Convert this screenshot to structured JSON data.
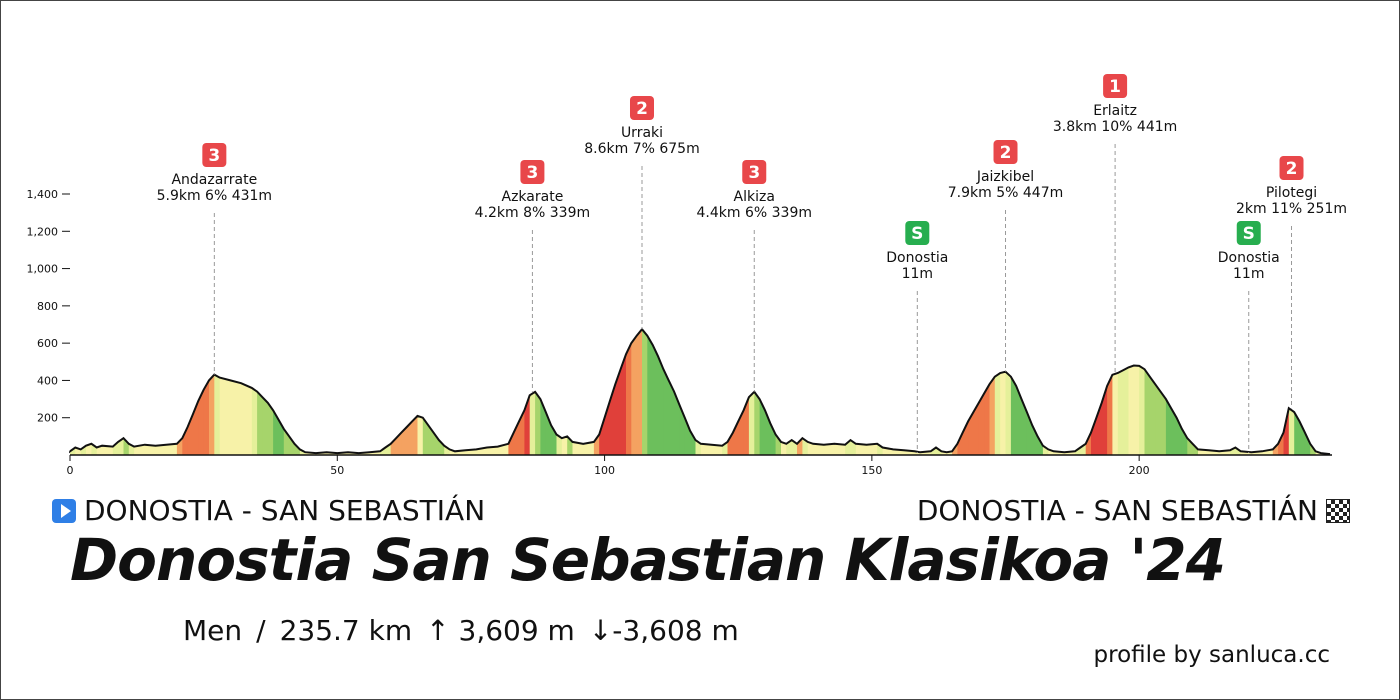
{
  "chart_data": {
    "type": "area",
    "title": "Donostia San Sebastian Klasikoa '24",
    "xlabel": "",
    "ylabel": "",
    "xlim": [
      0,
      235.7
    ],
    "ylim": [
      0,
      1400
    ],
    "x_ticks": [
      0,
      50,
      100,
      150,
      200
    ],
    "y_ticks": [
      200,
      400,
      600,
      800,
      1000,
      1200,
      1400
    ],
    "y_tick_labels": [
      "200",
      "400",
      "600",
      "800",
      "1,000",
      "1,200",
      "1,400"
    ],
    "x_tick_labels": [
      "0",
      "50",
      "100",
      "150",
      "200"
    ],
    "profile": [
      [
        0,
        20
      ],
      [
        1,
        40
      ],
      [
        2,
        30
      ],
      [
        3,
        50
      ],
      [
        4,
        60
      ],
      [
        5,
        40
      ],
      [
        6,
        50
      ],
      [
        8,
        45
      ],
      [
        9,
        70
      ],
      [
        10,
        90
      ],
      [
        11,
        60
      ],
      [
        12,
        45
      ],
      [
        14,
        55
      ],
      [
        16,
        50
      ],
      [
        18,
        55
      ],
      [
        20,
        60
      ],
      [
        21,
        90
      ],
      [
        22,
        150
      ],
      [
        23,
        220
      ],
      [
        24,
        290
      ],
      [
        25,
        350
      ],
      [
        26,
        400
      ],
      [
        27,
        431
      ],
      [
        28,
        415
      ],
      [
        30,
        400
      ],
      [
        32,
        385
      ],
      [
        34,
        360
      ],
      [
        35,
        340
      ],
      [
        36,
        310
      ],
      [
        37,
        280
      ],
      [
        38,
        240
      ],
      [
        39,
        190
      ],
      [
        40,
        140
      ],
      [
        41,
        100
      ],
      [
        42,
        60
      ],
      [
        43,
        30
      ],
      [
        44,
        15
      ],
      [
        46,
        10
      ],
      [
        48,
        15
      ],
      [
        50,
        10
      ],
      [
        52,
        15
      ],
      [
        54,
        10
      ],
      [
        56,
        15
      ],
      [
        58,
        20
      ],
      [
        59,
        40
      ],
      [
        60,
        60
      ],
      [
        61,
        90
      ],
      [
        62,
        120
      ],
      [
        63,
        150
      ],
      [
        64,
        180
      ],
      [
        65,
        210
      ],
      [
        66,
        200
      ],
      [
        67,
        160
      ],
      [
        68,
        120
      ],
      [
        69,
        80
      ],
      [
        70,
        50
      ],
      [
        71,
        30
      ],
      [
        72,
        20
      ],
      [
        74,
        25
      ],
      [
        76,
        30
      ],
      [
        78,
        40
      ],
      [
        80,
        45
      ],
      [
        82,
        60
      ],
      [
        83,
        120
      ],
      [
        84,
        180
      ],
      [
        85,
        240
      ],
      [
        86,
        320
      ],
      [
        87,
        339
      ],
      [
        88,
        300
      ],
      [
        89,
        230
      ],
      [
        90,
        160
      ],
      [
        91,
        110
      ],
      [
        92,
        90
      ],
      [
        93,
        100
      ],
      [
        94,
        70
      ],
      [
        96,
        60
      ],
      [
        98,
        70
      ],
      [
        99,
        110
      ],
      [
        100,
        200
      ],
      [
        101,
        290
      ],
      [
        102,
        380
      ],
      [
        103,
        460
      ],
      [
        104,
        540
      ],
      [
        105,
        600
      ],
      [
        106,
        640
      ],
      [
        107,
        675
      ],
      [
        108,
        640
      ],
      [
        109,
        590
      ],
      [
        110,
        530
      ],
      [
        111,
        460
      ],
      [
        112,
        400
      ],
      [
        113,
        340
      ],
      [
        114,
        270
      ],
      [
        115,
        200
      ],
      [
        116,
        130
      ],
      [
        117,
        80
      ],
      [
        118,
        60
      ],
      [
        120,
        55
      ],
      [
        122,
        50
      ],
      [
        123,
        70
      ],
      [
        124,
        120
      ],
      [
        125,
        180
      ],
      [
        126,
        240
      ],
      [
        127,
        310
      ],
      [
        128,
        339
      ],
      [
        129,
        300
      ],
      [
        130,
        240
      ],
      [
        131,
        170
      ],
      [
        132,
        110
      ],
      [
        133,
        70
      ],
      [
        134,
        60
      ],
      [
        135,
        80
      ],
      [
        136,
        60
      ],
      [
        137,
        90
      ],
      [
        138,
        70
      ],
      [
        139,
        60
      ],
      [
        141,
        55
      ],
      [
        143,
        60
      ],
      [
        145,
        55
      ],
      [
        146,
        80
      ],
      [
        147,
        60
      ],
      [
        149,
        55
      ],
      [
        151,
        60
      ],
      [
        152,
        40
      ],
      [
        154,
        30
      ],
      [
        156,
        25
      ],
      [
        158,
        20
      ],
      [
        159,
        15
      ],
      [
        161,
        20
      ],
      [
        162,
        40
      ],
      [
        163,
        20
      ],
      [
        164,
        15
      ],
      [
        165,
        20
      ],
      [
        166,
        60
      ],
      [
        167,
        120
      ],
      [
        168,
        180
      ],
      [
        169,
        230
      ],
      [
        170,
        280
      ],
      [
        171,
        330
      ],
      [
        172,
        380
      ],
      [
        173,
        420
      ],
      [
        174,
        440
      ],
      [
        175,
        447
      ],
      [
        176,
        420
      ],
      [
        177,
        370
      ],
      [
        178,
        300
      ],
      [
        179,
        230
      ],
      [
        180,
        160
      ],
      [
        181,
        100
      ],
      [
        182,
        50
      ],
      [
        183,
        30
      ],
      [
        184,
        20
      ],
      [
        186,
        15
      ],
      [
        188,
        20
      ],
      [
        189,
        40
      ],
      [
        190,
        60
      ],
      [
        191,
        120
      ],
      [
        192,
        200
      ],
      [
        193,
        280
      ],
      [
        194,
        370
      ],
      [
        195,
        430
      ],
      [
        196,
        440
      ],
      [
        197,
        455
      ],
      [
        198,
        470
      ],
      [
        199,
        480
      ],
      [
        200,
        478
      ],
      [
        201,
        460
      ],
      [
        202,
        420
      ],
      [
        203,
        380
      ],
      [
        204,
        340
      ],
      [
        205,
        300
      ],
      [
        206,
        250
      ],
      [
        207,
        200
      ],
      [
        208,
        140
      ],
      [
        209,
        90
      ],
      [
        210,
        60
      ],
      [
        211,
        30
      ],
      [
        213,
        25
      ],
      [
        215,
        20
      ],
      [
        217,
        25
      ],
      [
        218,
        40
      ],
      [
        219,
        20
      ],
      [
        221,
        15
      ],
      [
        223,
        20
      ],
      [
        224,
        25
      ],
      [
        225,
        30
      ],
      [
        226,
        60
      ],
      [
        227,
        120
      ],
      [
        228,
        251
      ],
      [
        229,
        230
      ],
      [
        230,
        180
      ],
      [
        231,
        120
      ],
      [
        232,
        60
      ],
      [
        233,
        20
      ],
      [
        234,
        10
      ],
      [
        235.7,
        5
      ]
    ],
    "climbs": [
      {
        "cat": "3",
        "name": "Andazarrate",
        "stats": "5.9km 6% 431m",
        "km": 27,
        "ele": 431
      },
      {
        "cat": "3",
        "name": "Azkarate",
        "stats": "4.2km 8% 339m",
        "km": 86.5,
        "ele": 339
      },
      {
        "cat": "2",
        "name": "Urraki",
        "stats": "8.6km 7% 675m",
        "km": 107,
        "ele": 675
      },
      {
        "cat": "3",
        "name": "Alkiza",
        "stats": "4.4km 6% 339m",
        "km": 128,
        "ele": 339
      },
      {
        "cat": "2",
        "name": "Jaizkibel",
        "stats": "7.9km 5% 447m",
        "km": 175,
        "ele": 447
      },
      {
        "cat": "1",
        "name": "Erlaitz",
        "stats": "3.8km 10% 441m",
        "km": 195.5,
        "ele": 441
      },
      {
        "cat": "2",
        "name": "Pilotegi",
        "stats": "2km 11% 251m",
        "km": 228.5,
        "ele": 251
      }
    ],
    "sprints": [
      {
        "cat": "S",
        "name": "Donostia",
        "stats": "11m",
        "km": 158.5,
        "ele": 11
      },
      {
        "cat": "S",
        "name": "Donostia",
        "stats": "11m",
        "km": 220.5,
        "ele": 11
      }
    ],
    "colors": {
      "climb_badge": "#e8474a",
      "sprint_badge": "#27ae4f",
      "flat": "#f7f2a8",
      "gentle": "#e5f09a",
      "moderate": "#a6d46b",
      "steep": "#6cbf5c",
      "orange": "#f4a261",
      "hard": "#ee7748",
      "red": "#e0403a"
    }
  },
  "start": {
    "label": "DONOSTIA - SAN SEBASTIÁN",
    "icon": "play-icon"
  },
  "finish": {
    "label": "DONOSTIA - SAN SEBASTIÁN",
    "icon": "checkered-flag-icon"
  },
  "race": {
    "title": "Donostia San Sebastian Klasikoa '24",
    "category": "Men",
    "separator": "/",
    "distance": "235.7 km",
    "climb_up": "↑ 3,609 m",
    "climb_down": "↓-3,608 m"
  },
  "credit": "profile by sanluca.cc"
}
